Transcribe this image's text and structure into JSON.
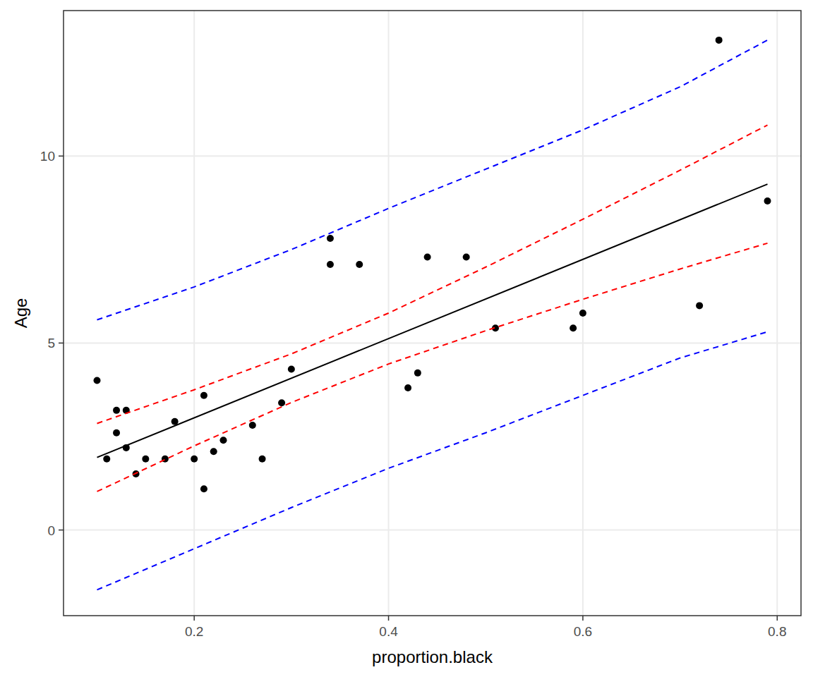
{
  "chart_data": {
    "type": "scatter",
    "x_label": "proportion.black",
    "y_label": "Age",
    "xlim": [
      0.0655,
      0.8245
    ],
    "ylim": [
      -2.29,
      13.89
    ],
    "xticks": [
      0.2,
      0.4,
      0.6,
      0.8
    ],
    "yticks": [
      0,
      5,
      10
    ],
    "grid": true,
    "series": [
      {
        "type": "scatter",
        "color": "#000000",
        "marker": "circle",
        "x": [
          0.1,
          0.11,
          0.12,
          0.12,
          0.13,
          0.13,
          0.14,
          0.15,
          0.17,
          0.18,
          0.2,
          0.21,
          0.21,
          0.22,
          0.23,
          0.26,
          0.27,
          0.29,
          0.3,
          0.34,
          0.34,
          0.37,
          0.42,
          0.43,
          0.44,
          0.48,
          0.51,
          0.59,
          0.6,
          0.72,
          0.74,
          0.79
        ],
        "values": [
          4.0,
          1.9,
          3.2,
          2.6,
          3.2,
          2.2,
          1.5,
          1.9,
          1.9,
          2.9,
          1.9,
          3.6,
          1.1,
          2.1,
          2.4,
          2.8,
          1.9,
          3.4,
          4.3,
          7.8,
          7.1,
          7.1,
          3.8,
          4.2,
          7.3,
          7.3,
          5.4,
          5.4,
          5.8,
          6.0,
          13.1,
          8.8
        ]
      },
      {
        "type": "line",
        "color": "#000000",
        "line_style": "solid",
        "x": [
          0.1,
          0.79
        ],
        "values": [
          1.94,
          9.25
        ]
      },
      {
        "type": "line",
        "color": "#ff0000",
        "line_style": "dashed",
        "x": [
          0.1,
          0.2,
          0.3,
          0.4,
          0.5,
          0.6,
          0.7,
          0.79
        ],
        "values": [
          2.85,
          3.75,
          4.71,
          5.8,
          7.03,
          8.31,
          9.62,
          10.83
        ]
      },
      {
        "type": "line",
        "color": "#ff0000",
        "line_style": "dashed",
        "x": [
          0.1,
          0.2,
          0.3,
          0.4,
          0.5,
          0.6,
          0.7,
          0.79
        ],
        "values": [
          1.03,
          2.25,
          3.41,
          4.44,
          5.33,
          6.17,
          6.98,
          7.67
        ]
      },
      {
        "type": "line",
        "color": "#0000ff",
        "line_style": "dashed",
        "x": [
          0.1,
          0.2,
          0.3,
          0.4,
          0.5,
          0.6,
          0.7,
          0.79
        ],
        "values": [
          5.62,
          6.5,
          7.5,
          8.6,
          9.65,
          10.7,
          11.85,
          13.1
        ]
      },
      {
        "type": "line",
        "color": "#0000ff",
        "line_style": "dashed",
        "x": [
          0.1,
          0.2,
          0.3,
          0.4,
          0.5,
          0.6,
          0.7,
          0.79
        ],
        "values": [
          -1.6,
          -0.5,
          0.6,
          1.65,
          2.6,
          3.6,
          4.6,
          5.3
        ]
      }
    ]
  }
}
